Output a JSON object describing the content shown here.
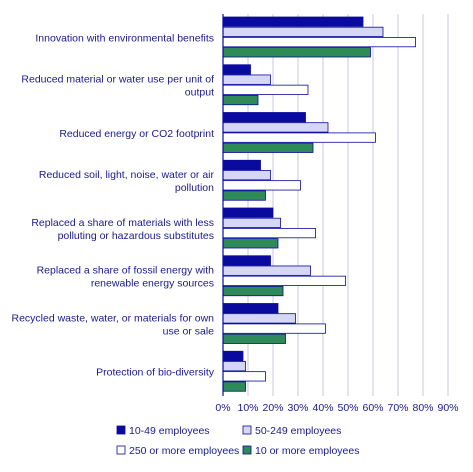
{
  "chart_data": {
    "type": "bar",
    "orientation": "horizontal",
    "title": "",
    "xlabel": "",
    "ylabel": "",
    "xlim": [
      0,
      90
    ],
    "x_ticks": [
      "0%",
      "10%",
      "20%",
      "30%",
      "40%",
      "50%",
      "60%",
      "70%",
      "80%",
      "90%"
    ],
    "grid": true,
    "legend_position": "bottom",
    "categories": [
      [
        "Innovation with environmental benefits"
      ],
      [
        "Reduced material or water use per unit of",
        "output"
      ],
      [
        "Reduced energy or CO2 footprint"
      ],
      [
        "Reduced soil, light, noise, water or air",
        "pollution"
      ],
      [
        "Replaced a share of materials with less",
        "polluting or hazardous substitutes"
      ],
      [
        "Replaced a share of fossil energy with",
        "renewable energy sources"
      ],
      [
        "Recycled waste, water, or materials for own",
        "use or sale"
      ],
      [
        "Protection of bio-diversity"
      ]
    ],
    "series": [
      {
        "name": "10-49 employees",
        "color": "#0a0a9e",
        "values": [
          56,
          11,
          33,
          15,
          20,
          19,
          22,
          8
        ]
      },
      {
        "name": "50-249 employees",
        "color": "#d6d6f5",
        "values": [
          64,
          19,
          42,
          19,
          23,
          35,
          29,
          9
        ]
      },
      {
        "name": "250 or more employees",
        "color": "#ffffff",
        "values": [
          77,
          34,
          61,
          31,
          37,
          49,
          41,
          17
        ]
      },
      {
        "name": "10 or more employees",
        "color": "#2e8b57",
        "values": [
          59,
          14,
          36,
          17,
          22,
          24,
          25,
          9
        ]
      }
    ]
  }
}
